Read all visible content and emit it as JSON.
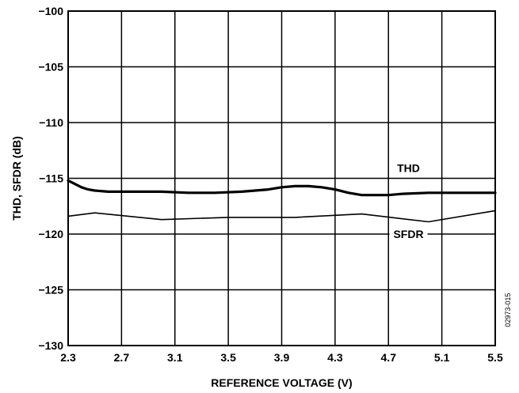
{
  "chart_data": {
    "type": "line",
    "title": "",
    "xlabel": "REFERENCE VOLTAGE (V)",
    "ylabel": "THD, SFDR (dB)",
    "xlim": [
      2.3,
      5.5
    ],
    "ylim": [
      -130,
      -100
    ],
    "x_ticks": [
      "2.3",
      "2.7",
      "3.1",
      "3.5",
      "3.9",
      "4.3",
      "4.7",
      "5.1",
      "5.5"
    ],
    "y_ticks": [
      "−100",
      "−105",
      "−110",
      "−115",
      "−120",
      "−125",
      "−130"
    ],
    "grid": true,
    "series": [
      {
        "name": "THD",
        "x": [
          2.3,
          2.35,
          2.4,
          2.45,
          2.5,
          2.6,
          2.7,
          2.8,
          3.0,
          3.2,
          3.4,
          3.6,
          3.8,
          3.9,
          4.0,
          4.1,
          4.2,
          4.3,
          4.4,
          4.5,
          4.6,
          4.7,
          4.8,
          5.0,
          5.2,
          5.5
        ],
        "y": [
          -115.2,
          -115.5,
          -115.8,
          -116.0,
          -116.1,
          -116.2,
          -116.2,
          -116.2,
          -116.2,
          -116.3,
          -116.3,
          -116.2,
          -116.0,
          -115.8,
          -115.7,
          -115.7,
          -115.8,
          -116.0,
          -116.3,
          -116.5,
          -116.5,
          -116.5,
          -116.4,
          -116.3,
          -116.3,
          -116.3
        ],
        "color": "#000000",
        "weight": "heavy"
      },
      {
        "name": "SFDR",
        "x": [
          2.3,
          2.5,
          3.0,
          3.5,
          4.0,
          4.5,
          5.0,
          5.5
        ],
        "y": [
          -118.4,
          -118.1,
          -118.7,
          -118.5,
          -118.5,
          -118.2,
          -118.9,
          -117.9
        ],
        "color": "#000000",
        "weight": "light"
      }
    ],
    "annotations": [
      {
        "text": "THD",
        "series": "THD"
      },
      {
        "text": "SFDR",
        "series": "SFDR"
      }
    ],
    "figure_id": "02973-015"
  }
}
